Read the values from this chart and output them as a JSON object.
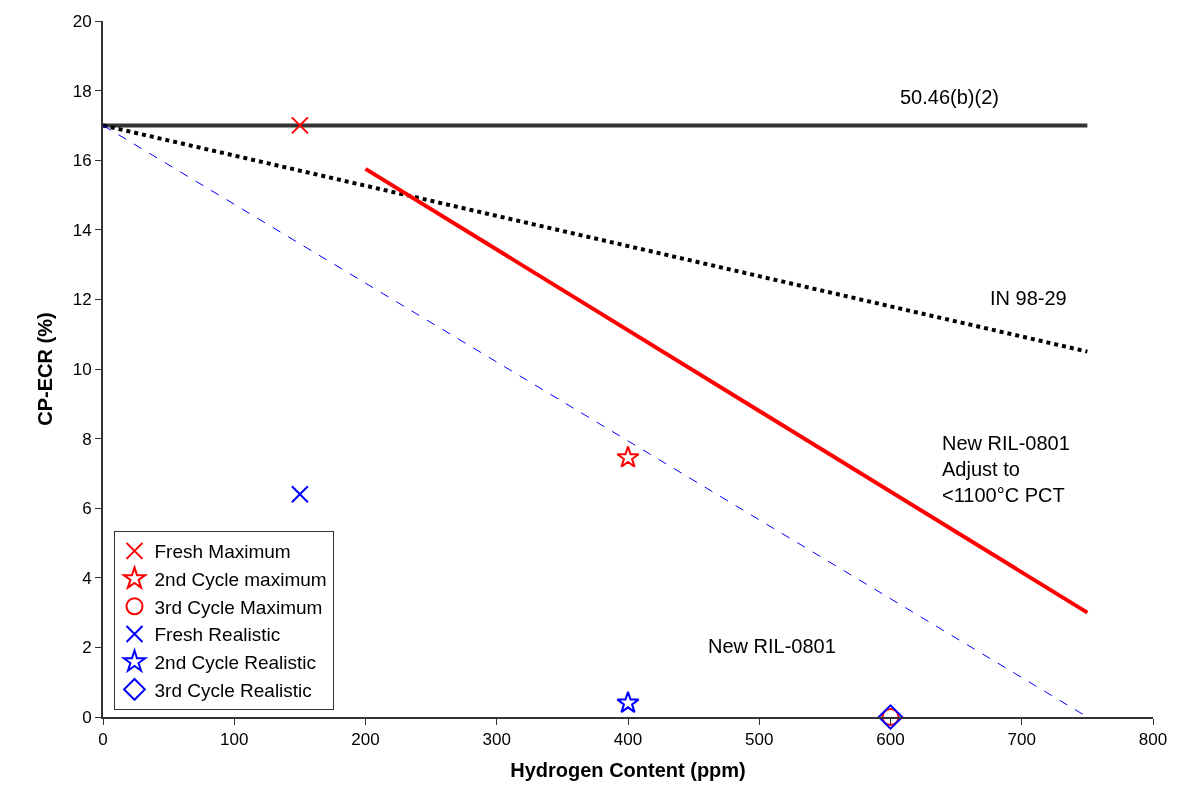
{
  "chart_data": {
    "type": "scatter",
    "xlabel": "Hydrogen Content (ppm)",
    "ylabel": "CP-ECR (%)",
    "xlim": [
      0,
      800
    ],
    "xticks": [
      0,
      100,
      200,
      300,
      400,
      500,
      600,
      700,
      800
    ],
    "ylim": [
      0,
      20
    ],
    "yticks": [
      0,
      2,
      4,
      6,
      8,
      10,
      12,
      14,
      16,
      18,
      20
    ],
    "legend": "bottom left",
    "series": [
      {
        "type": "line",
        "name": "50.46(b)(2)",
        "color": "#333333",
        "x": [
          0,
          750
        ],
        "values": [
          17,
          17
        ],
        "marker": "none",
        "line_style": "solid"
      },
      {
        "type": "line",
        "name": "IN 98-29",
        "color": "#000000",
        "x": [
          0,
          750
        ],
        "values": [
          17,
          10.5
        ],
        "marker": "none",
        "line_style": "dotted"
      },
      {
        "type": "line",
        "name": "New RIL-0801\nAdjust to\n<1100°C PCT",
        "color": "#ff0000",
        "x": [
          200,
          750
        ],
        "values": [
          15.75,
          3.0
        ],
        "marker": "none",
        "line_style": "solid"
      },
      {
        "type": "line",
        "name": "New RIL-0801",
        "color": "#0000ff",
        "x": [
          0,
          750
        ],
        "values": [
          17,
          0
        ],
        "marker": "none",
        "line_style": "dashed"
      },
      {
        "name": "Fresh Maximum",
        "color": "#ff0000",
        "x": [
          150
        ],
        "values": [
          17
        ],
        "marker": "cross"
      },
      {
        "name": "2nd Cycle maximum",
        "color": "#ff0000",
        "x": [
          400
        ],
        "values": [
          7.45
        ],
        "marker": "star"
      },
      {
        "name": "3rd Cycle Maximum",
        "color": "#ff0000",
        "x": [
          600
        ],
        "values": [
          0
        ],
        "marker": "circle"
      },
      {
        "name": "Fresh Realistic",
        "color": "#0000ff",
        "x": [
          150
        ],
        "values": [
          6.4
        ],
        "marker": "cross"
      },
      {
        "name": "2nd Cycle Realistic",
        "color": "#0000ff",
        "x": [
          400
        ],
        "values": [
          0.4
        ],
        "marker": "star"
      },
      {
        "name": "3rd Cycle Realistic",
        "color": "#0000ff",
        "x": [
          600
        ],
        "values": [
          0
        ],
        "marker": "diamond"
      }
    ]
  }
}
